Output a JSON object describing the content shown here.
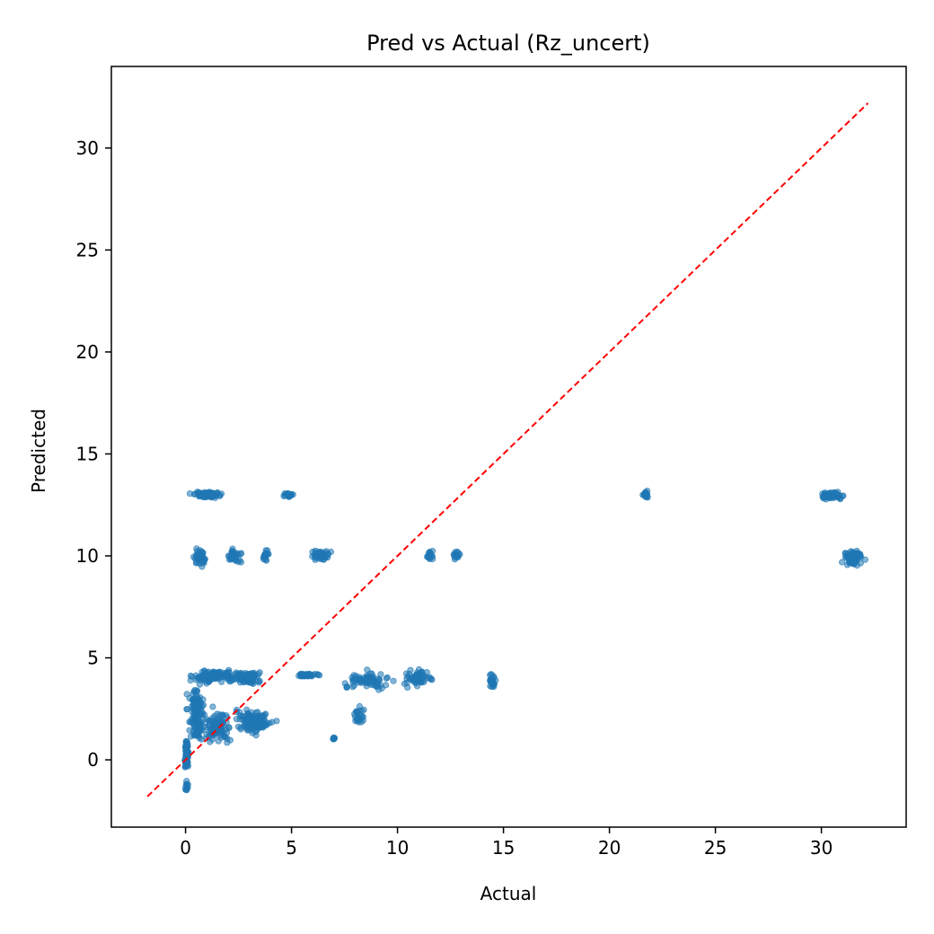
{
  "chart_data": {
    "type": "scatter",
    "title": "Pred vs Actual (Rz_uncert)",
    "xlabel": "Actual",
    "ylabel": "Predicted",
    "xlim": [
      -3.5,
      34
    ],
    "ylim": [
      -3.3,
      34
    ],
    "xticks": [
      0,
      5,
      10,
      15,
      20,
      25,
      30
    ],
    "yticks": [
      0,
      5,
      10,
      15,
      20,
      25,
      30
    ],
    "grid": false,
    "marker_color": "#1f77b4",
    "reference_line": {
      "style": "dashed",
      "color": "#ff0000",
      "from": [
        -1.8,
        -1.8
      ],
      "to": [
        32.2,
        32.2
      ]
    },
    "clusters": [
      {
        "x_center": 1.0,
        "x_spread": 0.6,
        "y_center": 13.0,
        "y_spread": 0.12,
        "count": 90
      },
      {
        "x_center": 4.9,
        "x_spread": 0.2,
        "y_center": 13.0,
        "y_spread": 0.12,
        "count": 20
      },
      {
        "x_center": 21.7,
        "x_spread": 0.2,
        "y_center": 13.0,
        "y_spread": 0.15,
        "count": 18
      },
      {
        "x_center": 30.5,
        "x_spread": 0.5,
        "y_center": 12.95,
        "y_spread": 0.15,
        "count": 60
      },
      {
        "x_center": 0.7,
        "x_spread": 0.25,
        "y_center": 9.9,
        "y_spread": 0.35,
        "count": 45
      },
      {
        "x_center": 2.3,
        "x_spread": 0.3,
        "y_center": 10.0,
        "y_spread": 0.3,
        "count": 35
      },
      {
        "x_center": 3.8,
        "x_spread": 0.2,
        "y_center": 10.0,
        "y_spread": 0.25,
        "count": 18
      },
      {
        "x_center": 6.3,
        "x_spread": 0.45,
        "y_center": 10.0,
        "y_spread": 0.25,
        "count": 40
      },
      {
        "x_center": 11.5,
        "x_spread": 0.2,
        "y_center": 10.0,
        "y_spread": 0.3,
        "count": 18
      },
      {
        "x_center": 12.8,
        "x_spread": 0.15,
        "y_center": 10.0,
        "y_spread": 0.25,
        "count": 15
      },
      {
        "x_center": 31.5,
        "x_spread": 0.45,
        "y_center": 9.9,
        "y_spread": 0.35,
        "count": 70
      },
      {
        "x_center": 1.5,
        "x_spread": 1.0,
        "y_center": 4.1,
        "y_spread": 0.3,
        "count": 120
      },
      {
        "x_center": 3.0,
        "x_spread": 0.6,
        "y_center": 4.0,
        "y_spread": 0.35,
        "count": 60
      },
      {
        "x_center": 5.8,
        "x_spread": 0.55,
        "y_center": 4.15,
        "y_spread": 0.07,
        "count": 40
      },
      {
        "x_center": 8.5,
        "x_spread": 1.0,
        "y_center": 3.9,
        "y_spread": 0.35,
        "count": 90
      },
      {
        "x_center": 11.0,
        "x_spread": 0.6,
        "y_center": 4.0,
        "y_spread": 0.35,
        "count": 70
      },
      {
        "x_center": 14.5,
        "x_spread": 0.12,
        "y_center": 3.9,
        "y_spread": 0.3,
        "count": 25
      },
      {
        "x_center": 8.2,
        "x_spread": 0.25,
        "y_center": 2.2,
        "y_spread": 0.4,
        "count": 25
      },
      {
        "x_center": 7.0,
        "x_spread": 0.04,
        "y_center": 1.05,
        "y_spread": 0.05,
        "count": 8
      },
      {
        "x_center": 0.5,
        "x_spread": 0.35,
        "y_center": 2.2,
        "y_spread": 1.2,
        "count": 140
      },
      {
        "x_center": 1.5,
        "x_spread": 0.6,
        "y_center": 1.6,
        "y_spread": 0.7,
        "count": 90
      },
      {
        "x_center": 3.2,
        "x_spread": 0.8,
        "y_center": 1.9,
        "y_spread": 0.55,
        "count": 120
      },
      {
        "x_center": 0.05,
        "x_spread": 0.08,
        "y_center": 0.3,
        "y_spread": 0.7,
        "count": 80
      },
      {
        "x_center": 0.05,
        "x_spread": 0.06,
        "y_center": -1.3,
        "y_spread": 0.25,
        "count": 12
      }
    ]
  }
}
